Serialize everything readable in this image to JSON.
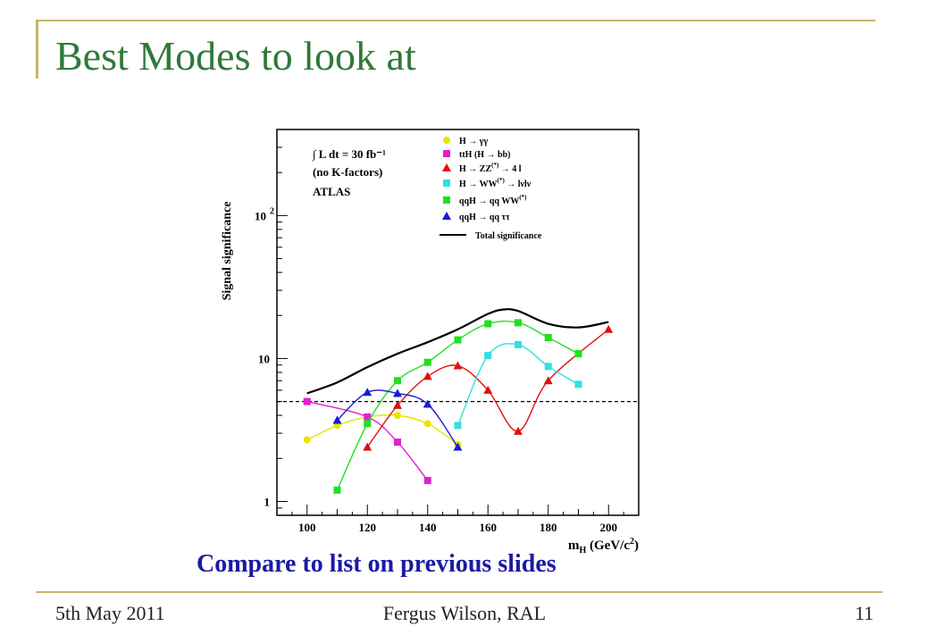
{
  "slide": {
    "title": "Best Modes to look at",
    "caption": "Compare to list on previous slides",
    "footer_left": "5th May 2011",
    "footer_center": "Fergus Wilson, RAL",
    "footer_right": "11"
  },
  "chart_data": {
    "type": "line",
    "ylabel": "Signal significance",
    "xlabel": "m_H (GeV/c^2)",
    "xlabel_parts": {
      "main": "m",
      "sub": "H",
      "unit": " (GeV/c",
      "sup": "2",
      "close": ")"
    },
    "xlim": [
      90,
      210
    ],
    "ylim": [
      0.8,
      400
    ],
    "y_scale": "log",
    "x_ticks": [
      "100",
      "120",
      "140",
      "160",
      "180",
      "200"
    ],
    "y_ticks": [
      {
        "value": 1,
        "label": "1"
      },
      {
        "value": 10,
        "label": "10"
      },
      {
        "value": 100,
        "label": "10 2"
      }
    ],
    "y_tick_major": [
      1,
      10,
      100
    ],
    "annotations": [
      "∫ L dt = 30 fb⁻¹",
      "(no K-factors)",
      "ATLAS"
    ],
    "reference_line": {
      "y": 5,
      "style": "dashed"
    },
    "legend_position": "top-right",
    "series": [
      {
        "name": "H → γγ",
        "color": "#e6e600",
        "marker": "circle",
        "x": [
          100,
          110,
          120,
          130,
          140,
          150
        ],
        "y": [
          2.7,
          3.4,
          3.9,
          4.0,
          3.5,
          2.5
        ]
      },
      {
        "name": "ttH (H → bb)",
        "color": "#e020d0",
        "marker": "square",
        "x": [
          100,
          120,
          130,
          140
        ],
        "y": [
          5.0,
          3.9,
          2.6,
          1.4
        ]
      },
      {
        "name": "H → ZZ(*) → 4 l",
        "color": "#e01010",
        "marker": "triangle",
        "x": [
          120,
          130,
          140,
          150,
          160,
          170,
          180,
          200
        ],
        "y": [
          2.4,
          4.7,
          7.5,
          8.9,
          6.0,
          3.1,
          7.0,
          16.0
        ]
      },
      {
        "name": "H → WW(*) → lνlν",
        "color": "#30e0e0",
        "marker": "square",
        "x": [
          150,
          160,
          170,
          180,
          190
        ],
        "y": [
          3.4,
          10.5,
          12.5,
          8.8,
          6.6
        ]
      },
      {
        "name": "qqH → qq WW(*)",
        "color": "#20e020",
        "marker": "square",
        "x": [
          110,
          120,
          130,
          140,
          150,
          160,
          170,
          180,
          190
        ],
        "y": [
          1.2,
          3.5,
          7.0,
          9.4,
          13.5,
          17.5,
          17.8,
          14.0,
          10.8
        ]
      },
      {
        "name": "qqH → qq ττ",
        "color": "#1a1ad0",
        "marker": "triangle",
        "x": [
          110,
          120,
          130,
          140,
          150
        ],
        "y": [
          3.7,
          5.8,
          5.7,
          4.8,
          2.4
        ]
      },
      {
        "name": "Total significance",
        "color": "#000000",
        "marker": "none",
        "x": [
          100,
          110,
          120,
          130,
          140,
          150,
          160,
          165,
          170,
          180,
          190,
          200
        ],
        "y": [
          5.7,
          6.8,
          8.7,
          10.8,
          13.0,
          16.0,
          20.5,
          22.0,
          21.5,
          17.5,
          16.5,
          18.0
        ]
      }
    ],
    "legend_labels": [
      {
        "text": "H  →  γγ"
      },
      {
        "text": "ttH (H  →  bb)"
      },
      {
        "text": "H  →  ZZ",
        "sup": "(*)",
        "rest": "  →  4 l"
      },
      {
        "text": "H  →  WW",
        "sup": "(*)",
        "rest": "  →  lνlν"
      },
      {
        "text": "qqH  →  qq WW",
        "sup": "(*)"
      },
      {
        "text": "qqH  →  qq ττ"
      },
      {
        "text": "Total significance"
      }
    ]
  }
}
